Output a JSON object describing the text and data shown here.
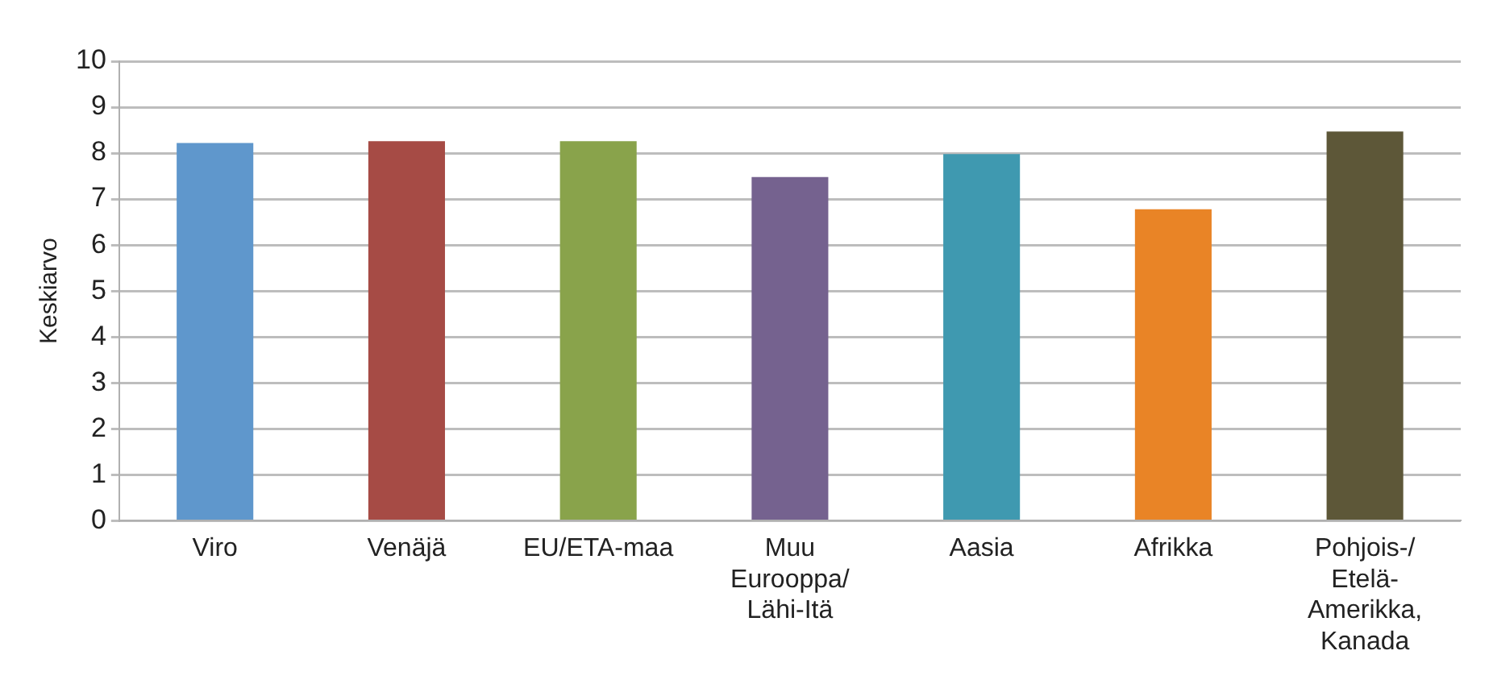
{
  "chart_data": {
    "type": "bar",
    "ylabel": "Keskiarvo",
    "categories": [
      "Viro",
      "Venäjä",
      "EU/ETA-maa",
      "Muu Eurooppa/Lähi-Itä",
      "Aasia",
      "Afrikka",
      "Pohjois-/Etelä-Amerikka, Kanada"
    ],
    "values": [
      8.22,
      8.26,
      8.26,
      7.48,
      7.98,
      6.78,
      8.47
    ],
    "colors": [
      "#5f97cc",
      "#a64b45",
      "#89a34b",
      "#75628f",
      "#3f99b0",
      "#e98426",
      "#5d5738"
    ],
    "ylim": [
      0,
      10
    ],
    "yticks": [
      0,
      1,
      2,
      3,
      4,
      5,
      6,
      7,
      8,
      9,
      10
    ],
    "grid": "y",
    "legend": false
  }
}
